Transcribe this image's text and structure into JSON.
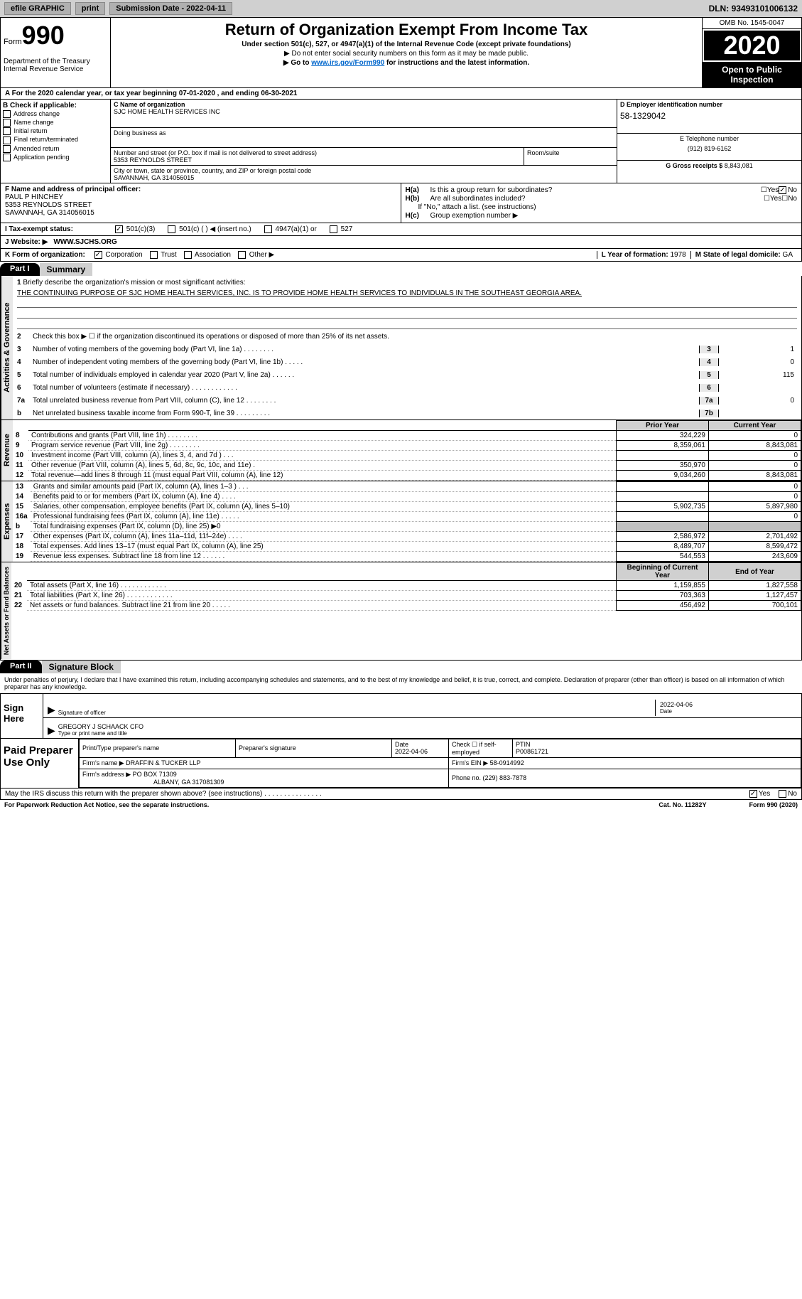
{
  "topbar": {
    "efile": "efile GRAPHIC",
    "print": "print",
    "submission_label": "Submission Date - ",
    "submission_date": "2022-04-11",
    "dln_label": "DLN: ",
    "dln": "93493101006132"
  },
  "header": {
    "form_word": "Form",
    "form_num": "990",
    "dept": "Department of the Treasury\nInternal Revenue Service",
    "title": "Return of Organization Exempt From Income Tax",
    "subtitle": "Under section 501(c), 527, or 4947(a)(1) of the Internal Revenue Code (except private foundations)",
    "warn": "▶ Do not enter social security numbers on this form as it may be made public.",
    "goto": "▶ Go to ",
    "goto_link": "www.irs.gov/Form990",
    "goto_rest": " for instructions and the latest information.",
    "omb": "OMB No. 1545-0047",
    "year": "2020",
    "open": "Open to Public Inspection"
  },
  "period": "A For the 2020 calendar year, or tax year beginning 07-01-2020   , and ending 06-30-2021",
  "boxB": {
    "hdr": "B Check if applicable:",
    "opts": [
      "Address change",
      "Name change",
      "Initial return",
      "Final return/terminated",
      "Amended return",
      "Application pending"
    ]
  },
  "boxC": {
    "name_lbl": "C Name of organization",
    "name": "SJC HOME HEALTH SERVICES INC",
    "dba_lbl": "Doing business as",
    "dba": "",
    "addr_lbl": "Number and street (or P.O. box if mail is not delivered to street address)",
    "addr": "5353 REYNOLDS STREET",
    "room_lbl": "Room/suite",
    "room": "",
    "city_lbl": "City or town, state or province, country, and ZIP or foreign postal code",
    "city": "SAVANNAH, GA  314056015"
  },
  "boxD": {
    "lbl": "D Employer identification number",
    "val": "58-1329042"
  },
  "boxE": {
    "lbl": "E Telephone number",
    "val": "(912) 819-6162"
  },
  "boxG": {
    "lbl": "G Gross receipts $ ",
    "val": "8,843,081"
  },
  "boxF": {
    "lbl": "F Name and address of principal officer:",
    "name": "PAUL P HINCHEY",
    "addr1": "5353 REYNOLDS STREET",
    "addr2": "SAVANNAH, GA  314056015"
  },
  "boxH": {
    "ha_lbl": "H(a)",
    "ha_txt": "Is this a group return for subordinates?",
    "ha_no": "No",
    "hb_lbl": "H(b)",
    "hb_txt": "Are all subordinates included?",
    "hb_note": "If \"No,\" attach a list. (see instructions)",
    "hc_lbl": "H(c)",
    "hc_txt": "Group exemption number ▶"
  },
  "boxI": {
    "lbl": "I    Tax-exempt status:",
    "opts": [
      "501(c)(3)",
      "501(c) (  ) ◀ (insert no.)",
      "4947(a)(1) or",
      "527"
    ]
  },
  "boxJ": {
    "lbl": "J    Website: ▶",
    "val": "WWW.SJCHS.ORG"
  },
  "boxK": {
    "lbl": "K Form of organization:",
    "opts": [
      "Corporation",
      "Trust",
      "Association",
      "Other ▶"
    ],
    "L_lbl": "L Year of formation: ",
    "L_val": "1978",
    "M_lbl": "M State of legal domicile: ",
    "M_val": "GA"
  },
  "part1": {
    "hdr": "Part I",
    "title": "Summary",
    "line1_lbl": "1",
    "line1_txt": "Briefly describe the organization's mission or most significant activities:",
    "mission": "THE CONTINUING PURPOSE OF SJC HOME HEALTH SERVICES, INC. IS TO PROVIDE HOME HEALTH SERVICES TO INDIVIDUALS IN THE SOUTHEAST GEORGIA AREA.",
    "line2_txt": "Check this box ▶ ☐  if the organization discontinued its operations or disposed of more than 25% of its net assets.",
    "lines_gov": [
      {
        "n": "3",
        "t": "Number of voting members of the governing body (Part VI, line 1a)   .    .    .    .    .    .    .    .",
        "c": "3",
        "v": "1"
      },
      {
        "n": "4",
        "t": "Number of independent voting members of the governing body (Part VI, line 1b)   .    .    .    .    .",
        "c": "4",
        "v": "0"
      },
      {
        "n": "5",
        "t": "Total number of individuals employed in calendar year 2020 (Part V, line 2a)   .    .    .    .    .    .",
        "c": "5",
        "v": "115"
      },
      {
        "n": "6",
        "t": "Total number of volunteers (estimate if necessary)   .    .    .    .    .    .    .    .    .    .    .    .",
        "c": "6",
        "v": ""
      },
      {
        "n": "7a",
        "t": "Total unrelated business revenue from Part VIII, column (C), line 12   .    .    .    .    .    .    .    .",
        "c": "7a",
        "v": "0"
      },
      {
        "n": "b",
        "t": "Net unrelated business taxable income from Form 990-T, line 39   .    .    .    .    .    .    .    .    .",
        "c": "7b",
        "v": ""
      }
    ],
    "col_prior": "Prior Year",
    "col_curr": "Current Year",
    "revenue": [
      {
        "n": "8",
        "t": "Contributions and grants (Part VIII, line 1h)   .    .    .    .    .    .    .    .",
        "p": "324,229",
        "c": "0"
      },
      {
        "n": "9",
        "t": "Program service revenue (Part VIII, line 2g)   .    .    .    .    .    .    .    .",
        "p": "8,359,061",
        "c": "8,843,081"
      },
      {
        "n": "10",
        "t": "Investment income (Part VIII, column (A), lines 3, 4, and 7d )   .    .    .",
        "p": "",
        "c": "0"
      },
      {
        "n": "11",
        "t": "Other revenue (Part VIII, column (A), lines 5, 6d, 8c, 9c, 10c, and 11e)   .",
        "p": "350,970",
        "c": "0"
      },
      {
        "n": "12",
        "t": "Total revenue—add lines 8 through 11 (must equal Part VIII, column (A), line 12)",
        "p": "9,034,260",
        "c": "8,843,081"
      }
    ],
    "expenses": [
      {
        "n": "13",
        "t": "Grants and similar amounts paid (Part IX, column (A), lines 1–3 )   .    .    .",
        "p": "",
        "c": "0"
      },
      {
        "n": "14",
        "t": "Benefits paid to or for members (Part IX, column (A), line 4)   .    .    .    .",
        "p": "",
        "c": "0"
      },
      {
        "n": "15",
        "t": "Salaries, other compensation, employee benefits (Part IX, column (A), lines 5–10)",
        "p": "5,902,735",
        "c": "5,897,980"
      },
      {
        "n": "16a",
        "t": "Professional fundraising fees (Part IX, column (A), line 11e)   .    .    .    .    .",
        "p": "",
        "c": "0"
      },
      {
        "n": "b",
        "t": "Total fundraising expenses (Part IX, column (D), line 25) ▶0",
        "p": "shaded",
        "c": "shaded"
      },
      {
        "n": "17",
        "t": "Other expenses (Part IX, column (A), lines 11a–11d, 11f–24e)   .    .    .    .",
        "p": "2,586,972",
        "c": "2,701,492"
      },
      {
        "n": "18",
        "t": "Total expenses. Add lines 13–17 (must equal Part IX, column (A), line 25)",
        "p": "8,489,707",
        "c": "8,599,472"
      },
      {
        "n": "19",
        "t": "Revenue less expenses. Subtract line 18 from line 12   .    .    .    .    .    .",
        "p": "544,553",
        "c": "243,609"
      }
    ],
    "col_begin": "Beginning of Current Year",
    "col_end": "End of Year",
    "netassets": [
      {
        "n": "20",
        "t": "Total assets (Part X, line 16)   .    .    .    .    .    .    .    .    .    .    .    .",
        "p": "1,159,855",
        "c": "1,827,558"
      },
      {
        "n": "21",
        "t": "Total liabilities (Part X, line 26)   .    .    .    .    .    .    .    .    .    .    .    .",
        "p": "703,363",
        "c": "1,127,457"
      },
      {
        "n": "22",
        "t": "Net assets or fund balances. Subtract line 21 from line 20   .    .    .    .    .",
        "p": "456,492",
        "c": "700,101"
      }
    ],
    "vlabels": {
      "gov": "Activities & Governance",
      "rev": "Revenue",
      "exp": "Expenses",
      "net": "Net Assets or Fund Balances"
    }
  },
  "part2": {
    "hdr": "Part II",
    "title": "Signature Block",
    "intro": "Under penalties of perjury, I declare that I have examined this return, including accompanying schedules and statements, and to the best of my knowledge and belief, it is true, correct, and complete. Declaration of preparer (other than officer) is based on all information of which preparer has any knowledge.",
    "sign_here": "Sign Here",
    "sig_lbl": "Signature of officer",
    "date_lbl": "Date",
    "sig_date": "2022-04-06",
    "officer": "GREGORY J SCHAACK  CFO",
    "officer_lbl": "Type or print name and title",
    "paid": "Paid Preparer Use Only",
    "prep_name_lbl": "Print/Type preparer's name",
    "prep_sig_lbl": "Preparer's signature",
    "prep_date_lbl": "Date",
    "prep_date": "2022-04-06",
    "prep_check_lbl": "Check ☐ if self-employed",
    "ptin_lbl": "PTIN",
    "ptin": "P00861721",
    "firm_name_lbl": "Firm's name    ▶",
    "firm_name": "DRAFFIN & TUCKER LLP",
    "firm_ein_lbl": "Firm's EIN ▶",
    "firm_ein": "58-0914992",
    "firm_addr_lbl": "Firm's address ▶",
    "firm_addr1": "PO BOX 71309",
    "firm_addr2": "ALBANY, GA  317081309",
    "firm_phone_lbl": "Phone no. ",
    "firm_phone": "(229) 883-7878",
    "discuss": "May the IRS discuss this return with the preparer shown above? (see instructions)   .    .    .    .    .    .    .    .    .    .    .    .    .    .    .",
    "discuss_yes": "Yes",
    "discuss_no": "No"
  },
  "footer": {
    "pra": "For Paperwork Reduction Act Notice, see the separate instructions.",
    "cat": "Cat. No. 11282Y",
    "form": "Form 990 (2020)"
  }
}
